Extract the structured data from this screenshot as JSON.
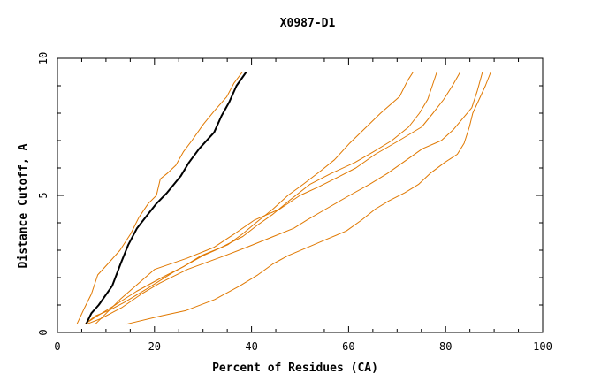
{
  "chart_data": {
    "type": "line",
    "title": "X0987-D1",
    "xlabel": "Percent of Residues (CA)",
    "ylabel": "Distance Cutoff, A",
    "xlim": [
      0,
      100
    ],
    "ylim": [
      0,
      10
    ],
    "x_ticks": [
      "0",
      "20",
      "40",
      "60",
      "80",
      "100"
    ],
    "y_ticks": [
      "0",
      "5",
      "10"
    ],
    "grid": false,
    "colors": {
      "highlight": "#000000",
      "others": "#e07800"
    },
    "series": [
      {
        "highlight": true,
        "x": [
          5.9,
          7.0,
          8.5,
          11.3,
          13.0,
          14.6,
          16.4,
          18.6,
          20.4,
          22.6,
          25.4,
          27.1,
          29.2,
          32.3,
          33.8,
          35.4,
          36.9,
          38.9
        ],
        "y": [
          0.3,
          0.7,
          1.0,
          1.7,
          2.5,
          3.2,
          3.8,
          4.3,
          4.7,
          5.1,
          5.7,
          6.2,
          6.7,
          7.3,
          7.9,
          8.4,
          9.0,
          9.5
        ]
      },
      {
        "x": [
          4.0,
          5.6,
          7.0,
          8.3,
          10.9,
          12.9,
          15.1,
          16.8,
          18.7,
          20.4,
          21.2,
          22.6,
          24.4,
          26.0,
          27.7,
          30.1,
          32.4,
          34.9,
          36.4,
          38.1
        ],
        "y": [
          0.3,
          0.9,
          1.4,
          2.1,
          2.6,
          3.0,
          3.6,
          4.2,
          4.7,
          5.0,
          5.6,
          5.8,
          6.1,
          6.6,
          7.0,
          7.6,
          8.1,
          8.6,
          9.1,
          9.5
        ]
      },
      {
        "x": [
          5.7,
          7.8,
          10.6,
          13.8,
          18.5,
          23.9,
          30.0,
          35.1,
          38.2,
          40.9,
          44.4,
          47.5,
          50.6,
          54.3,
          57.1,
          60.2,
          63.7,
          66.6,
          70.5,
          72.2,
          73.3
        ],
        "y": [
          0.3,
          0.6,
          0.8,
          1.1,
          1.6,
          2.2,
          2.8,
          3.2,
          3.6,
          4.0,
          4.5,
          5.0,
          5.4,
          5.9,
          6.3,
          6.9,
          7.5,
          8.0,
          8.6,
          9.2,
          9.5
        ]
      },
      {
        "x": [
          5.6,
          8.2,
          11.9,
          16.3,
          21.5,
          26.0,
          29.6,
          33.7,
          38.2,
          41.1,
          44.3,
          47.7,
          52.0,
          56.4,
          61.3,
          65.2,
          68.9,
          72.4,
          74.6,
          76.3,
          78.2
        ],
        "y": [
          0.3,
          0.6,
          1.0,
          1.5,
          2.0,
          2.4,
          2.8,
          3.1,
          3.5,
          3.9,
          4.3,
          4.8,
          5.4,
          5.8,
          6.2,
          6.6,
          7.0,
          7.5,
          8.0,
          8.5,
          9.5
        ]
      },
      {
        "x": [
          7.8,
          12.9,
          20.0,
          26.6,
          32.2,
          36.5,
          40.6,
          45.8,
          50.0,
          53.7,
          58.2,
          61.5,
          65.5,
          70.4,
          75.1,
          77.4,
          79.6,
          81.4,
          83.0
        ],
        "y": [
          0.3,
          1.2,
          2.3,
          2.7,
          3.1,
          3.6,
          4.1,
          4.5,
          5.0,
          5.3,
          5.7,
          6.0,
          6.5,
          7.0,
          7.5,
          8.0,
          8.5,
          9.0,
          9.5
        ]
      },
      {
        "x": [
          6.0,
          8.9,
          13.2,
          17.3,
          21.1,
          26.8,
          34.5,
          38.9,
          44.5,
          48.7,
          51.4,
          55.3,
          60.2,
          64.3,
          68.0,
          72.0,
          75.2,
          79.1,
          81.6,
          83.5,
          85.4,
          86.5,
          87.6
        ],
        "y": [
          0.3,
          0.5,
          0.9,
          1.4,
          1.8,
          2.3,
          2.8,
          3.1,
          3.5,
          3.8,
          4.1,
          4.5,
          5.0,
          5.4,
          5.8,
          6.3,
          6.7,
          7.0,
          7.4,
          7.8,
          8.2,
          8.8,
          9.5
        ]
      },
      {
        "x": [
          14.2,
          21.3,
          26.5,
          32.4,
          37.6,
          41.3,
          44.4,
          47.5,
          51.5,
          55.5,
          59.5,
          62.7,
          65.5,
          68.3,
          71.6,
          74.4,
          76.8,
          79.8,
          82.4,
          83.8,
          84.9,
          85.6,
          86.9,
          88.2,
          89.3
        ],
        "y": [
          0.3,
          0.6,
          0.8,
          1.2,
          1.7,
          2.1,
          2.5,
          2.8,
          3.1,
          3.4,
          3.7,
          4.1,
          4.5,
          4.8,
          5.1,
          5.4,
          5.8,
          6.2,
          6.5,
          6.9,
          7.5,
          8.0,
          8.5,
          9.0,
          9.5
        ]
      }
    ]
  }
}
